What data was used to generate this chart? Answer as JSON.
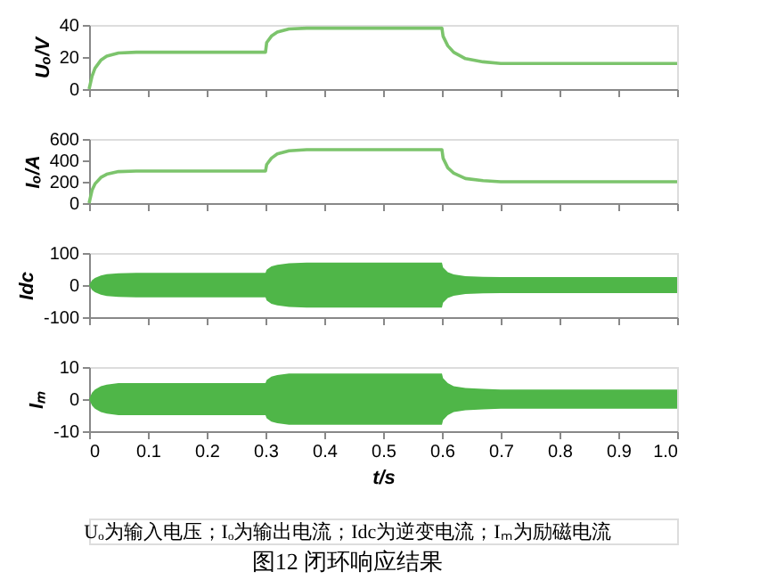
{
  "chart_data": [
    {
      "type": "line",
      "ylabel": "Uₒ/V",
      "tick_labels": "y",
      "xlim": [
        0,
        1
      ],
      "xticks": [
        0,
        0.1,
        0.2,
        0.3,
        0.4,
        0.5,
        0.6,
        0.7,
        0.8,
        0.9,
        1
      ],
      "ylim": [
        0,
        40
      ],
      "yticks": [
        0,
        20,
        40
      ],
      "x": [
        0,
        0.005,
        0.01,
        0.02,
        0.03,
        0.05,
        0.08,
        0.3,
        0.302,
        0.31,
        0.32,
        0.34,
        0.37,
        0.6,
        0.602,
        0.61,
        0.62,
        0.64,
        0.67,
        0.7,
        1.0
      ],
      "series": [
        {
          "color": "#7cc46c",
          "values": [
            0,
            8,
            13,
            18,
            20.5,
            22.5,
            23,
            23,
            29,
            33,
            35.5,
            37.5,
            38,
            38,
            33,
            27,
            23,
            19,
            17,
            16,
            16
          ]
        }
      ]
    },
    {
      "type": "line",
      "ylabel": "Iₒ/A",
      "tick_labels": "y",
      "xlim": [
        0,
        1
      ],
      "xticks": [
        0,
        0.1,
        0.2,
        0.3,
        0.4,
        0.5,
        0.6,
        0.7,
        0.8,
        0.9,
        1
      ],
      "ylim": [
        0,
        600
      ],
      "yticks": [
        0,
        200,
        400,
        600
      ],
      "x": [
        0,
        0.005,
        0.01,
        0.02,
        0.03,
        0.05,
        0.08,
        0.3,
        0.302,
        0.31,
        0.32,
        0.34,
        0.37,
        0.6,
        0.602,
        0.61,
        0.62,
        0.64,
        0.67,
        0.7,
        1.0
      ],
      "series": [
        {
          "color": "#7cc46c",
          "values": [
            0,
            120,
            180,
            240,
            270,
            295,
            300,
            300,
            360,
            420,
            460,
            490,
            500,
            500,
            420,
            330,
            280,
            230,
            210,
            200,
            200
          ]
        }
      ]
    },
    {
      "type": "line",
      "ylabel": "Idc",
      "tick_labels": "y",
      "xlim": [
        0,
        1
      ],
      "xticks": [
        0,
        0.1,
        0.2,
        0.3,
        0.4,
        0.5,
        0.6,
        0.7,
        0.8,
        0.9,
        1
      ],
      "ylim": [
        -100,
        100
      ],
      "yticks": [
        -100,
        0,
        100
      ],
      "x": [
        0,
        0.005,
        0.01,
        0.02,
        0.03,
        0.05,
        0.08,
        0.3,
        0.302,
        0.31,
        0.32,
        0.34,
        0.37,
        0.6,
        0.602,
        0.61,
        0.62,
        0.64,
        0.67,
        0.7,
        1.0
      ],
      "series": [
        {
          "color": "#4fb648",
          "values": [
            null,
            null,
            null,
            null,
            null,
            null,
            null,
            null,
            null,
            null,
            null,
            null,
            null,
            null,
            null,
            null,
            null,
            null,
            null,
            null,
            null
          ],
          "upper": [
            0,
            15,
            22,
            30,
            34,
            37,
            38,
            38,
            48,
            58,
            63,
            68,
            70,
            70,
            55,
            40,
            33,
            28,
            26,
            25,
            25
          ],
          "lower": [
            0,
            -15,
            -22,
            -30,
            -34,
            -37,
            -38,
            -38,
            -48,
            -58,
            -63,
            -68,
            -70,
            -70,
            -55,
            -40,
            -33,
            -28,
            -26,
            -25,
            -25
          ]
        }
      ]
    },
    {
      "type": "line",
      "ylabel": "Iₘ",
      "xlabel": "t/s",
      "title": "图12  闭环响应结果",
      "annotations": [
        "Uₒ为输入电压；Iₒ为输出电流；Idc为逆变电流；Iₘ为励磁电流"
      ],
      "xlim": [
        0,
        1
      ],
      "xticks": [
        0,
        0.1,
        0.2,
        0.3,
        0.4,
        0.5,
        0.6,
        0.7,
        0.8,
        0.9,
        {
          "value": 1,
          "label": "1.0"
        }
      ],
      "ylim": [
        -10,
        10
      ],
      "yticks": [
        -10,
        0,
        10
      ],
      "x": [
        0,
        0.005,
        0.01,
        0.02,
        0.03,
        0.05,
        0.08,
        0.3,
        0.302,
        0.31,
        0.32,
        0.34,
        0.37,
        0.6,
        0.602,
        0.61,
        0.62,
        0.64,
        0.67,
        0.7,
        1.0
      ],
      "series": [
        {
          "color": "#4fb648",
          "values": [
            null,
            null,
            null,
            null,
            null,
            null,
            null,
            null,
            null,
            null,
            null,
            null,
            null,
            null,
            null,
            null,
            null,
            null,
            null,
            null,
            null
          ],
          "upper": [
            0,
            2,
            3,
            4,
            4.5,
            5,
            5,
            5,
            6,
            7,
            7.5,
            8,
            8,
            8,
            6.5,
            5,
            4,
            3.5,
            3.2,
            3,
            3
          ],
          "lower": [
            0,
            -2,
            -3,
            -4,
            -4.5,
            -5,
            -5,
            -5,
            -6,
            -7,
            -7.5,
            -8,
            -8,
            -8,
            -6.5,
            -5,
            -4,
            -3.5,
            -3.2,
            -3,
            -3
          ]
        }
      ]
    }
  ]
}
